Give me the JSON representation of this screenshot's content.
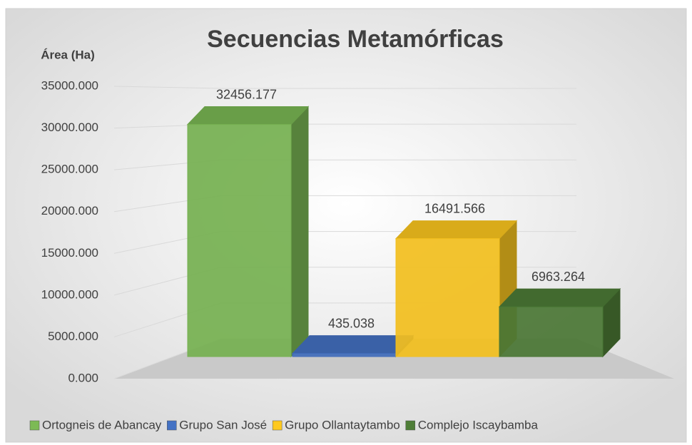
{
  "chart_data": {
    "type": "bar3d",
    "title": "Secuencias Metamórficas",
    "y_label": "Área (Ha)",
    "series": [
      {
        "name": "Ortogneis de Abancay",
        "color": "#7cba55",
        "values": [
          32456.177
        ]
      },
      {
        "name": "Grupo San José",
        "color": "#4472c4",
        "values": [
          435.038
        ]
      },
      {
        "name": "Grupo Ollantaytambo",
        "color": "#ffc91f",
        "values": [
          16491.566
        ]
      },
      {
        "name": "Complejo Iscaybamba",
        "color": "#4e7d37",
        "values": [
          6963.264
        ]
      }
    ],
    "ylim": [
      0,
      35000
    ],
    "yticks": [
      {
        "value": 0,
        "label": "0.000"
      },
      {
        "value": 5000,
        "label": "5000.000"
      },
      {
        "value": 10000,
        "label": "10000.000"
      },
      {
        "value": 15000,
        "label": "15000.000"
      },
      {
        "value": 20000,
        "label": "20000.000"
      },
      {
        "value": 25000,
        "label": "25000.000"
      },
      {
        "value": 30000,
        "label": "30000.000"
      },
      {
        "value": 35000,
        "label": "35000.000"
      }
    ],
    "grid": true,
    "legend": "bottom"
  }
}
